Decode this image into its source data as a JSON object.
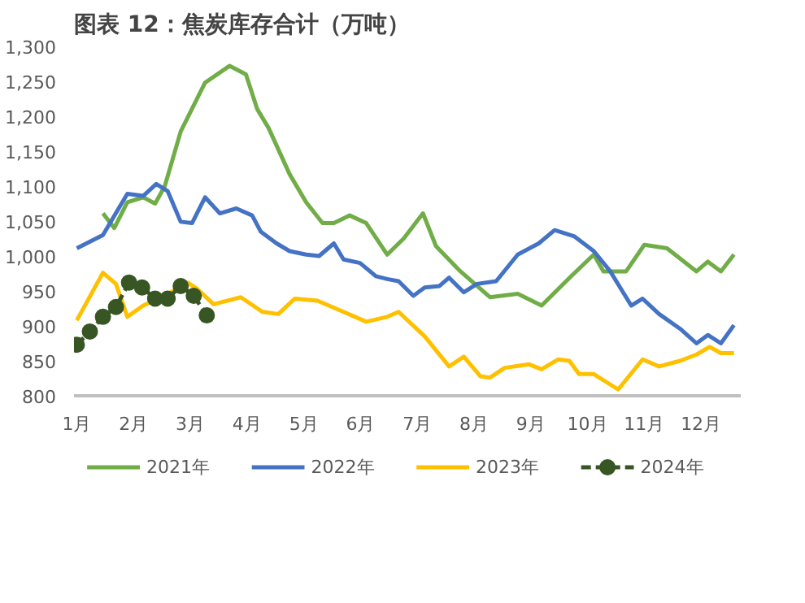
{
  "chart_data": {
    "type": "line",
    "title": "图表 12：焦炭库存合计（万吨）",
    "xlim": [
      0.95,
      12.7
    ],
    "xticks": [
      {
        "value": 1,
        "label": "1月"
      },
      {
        "value": 2,
        "label": "2月"
      },
      {
        "value": 3,
        "label": "3月"
      },
      {
        "value": 4,
        "label": "4月"
      },
      {
        "value": 5,
        "label": "5月"
      },
      {
        "value": 6,
        "label": "6月"
      },
      {
        "value": 7,
        "label": "7月"
      },
      {
        "value": 8,
        "label": "8月"
      },
      {
        "value": 9,
        "label": "9月"
      },
      {
        "value": 10,
        "label": "10月"
      },
      {
        "value": 11,
        "label": "11月"
      },
      {
        "value": 12,
        "label": "12月"
      }
    ],
    "ylim": [
      800,
      1300
    ],
    "yticks": [
      800,
      850,
      900,
      950,
      {
        "value": 1000,
        "label": "1,000"
      },
      {
        "value": 1050,
        "label": "1,050"
      },
      {
        "value": 1100,
        "label": "1,100"
      },
      {
        "value": 1150,
        "label": "1,150"
      },
      {
        "value": 1200,
        "label": "1,200"
      },
      {
        "value": 1250,
        "label": "1,250"
      },
      {
        "value": 1300,
        "label": "1,300"
      }
    ],
    "grid": false,
    "legend": "bottom",
    "series": [
      {
        "name": "2021年",
        "color": "#70ad47",
        "line_style": "solid",
        "marker": "none",
        "x": [
          1.46,
          1.66,
          1.89,
          2.17,
          2.38,
          2.55,
          2.83,
          3.26,
          3.69,
          3.98,
          4.18,
          4.38,
          4.75,
          5.04,
          5.33,
          5.53,
          5.81,
          6.1,
          6.47,
          6.76,
          7.1,
          7.33,
          7.76,
          8.28,
          8.77,
          9.19,
          9.71,
          10.11,
          10.28,
          10.68,
          11.0,
          11.4,
          11.92,
          12.12,
          12.35,
          12.58
        ],
        "values": [
          1061,
          1040,
          1077,
          1084,
          1075,
          1100,
          1178,
          1248,
          1272,
          1260,
          1210,
          1183,
          1117,
          1077,
          1047,
          1047,
          1058,
          1047,
          1002,
          1025,
          1061,
          1014,
          978,
          941,
          946,
          929,
          971,
          1002,
          978,
          978,
          1016,
          1011,
          978,
          992,
          978,
          1002
        ]
      },
      {
        "name": "2022年",
        "color": "#4472c4",
        "line_style": "solid",
        "marker": "none",
        "x": [
          1.0,
          1.46,
          1.89,
          2.17,
          2.4,
          2.6,
          2.83,
          3.03,
          3.26,
          3.52,
          3.81,
          4.09,
          4.24,
          4.52,
          4.75,
          5.04,
          5.27,
          5.53,
          5.7,
          5.99,
          6.27,
          6.47,
          6.67,
          6.93,
          7.13,
          7.39,
          7.56,
          7.82,
          8.05,
          8.39,
          8.77,
          9.14,
          9.42,
          9.77,
          10.11,
          10.4,
          10.77,
          10.97,
          11.26,
          11.63,
          11.92,
          12.12,
          12.35,
          12.58
        ],
        "values": [
          1011,
          1030,
          1089,
          1086,
          1103,
          1093,
          1049,
          1047,
          1084,
          1061,
          1068,
          1058,
          1035,
          1018,
          1007,
          1002,
          1000,
          1018,
          995,
          990,
          971,
          967,
          964,
          943,
          955,
          957,
          969,
          948,
          960,
          964,
          1002,
          1018,
          1037,
          1028,
          1007,
          978,
          929,
          939,
          917,
          896,
          875,
          887,
          875,
          901
        ]
      },
      {
        "name": "2023年",
        "color": "#ffc000",
        "line_style": "solid",
        "marker": "none",
        "x": [
          1.0,
          1.46,
          1.69,
          1.89,
          2.17,
          2.55,
          2.95,
          3.12,
          3.41,
          3.89,
          4.27,
          4.55,
          4.84,
          5.24,
          5.7,
          6.1,
          6.47,
          6.67,
          7.13,
          7.56,
          7.82,
          8.11,
          8.28,
          8.54,
          8.97,
          9.19,
          9.48,
          9.68,
          9.85,
          10.11,
          10.54,
          10.97,
          11.26,
          11.63,
          11.92,
          12.15,
          12.35,
          12.58
        ],
        "values": [
          908,
          976,
          960,
          913,
          929,
          943,
          962,
          953,
          931,
          941,
          920,
          917,
          939,
          936,
          920,
          906,
          913,
          920,
          885,
          842,
          856,
          828,
          826,
          840,
          845,
          838,
          852,
          850,
          831,
          831,
          809,
          852,
          842,
          850,
          859,
          870,
          861,
          861
        ]
      },
      {
        "name": "2024年",
        "color": "#375623",
        "line_style": "dashed",
        "marker": "circle",
        "x": [
          1.0,
          1.23,
          1.46,
          1.69,
          1.92,
          2.15,
          2.38,
          2.6,
          2.83,
          3.06,
          3.29
        ],
        "values": [
          873,
          892,
          913,
          927,
          962,
          955,
          939,
          939,
          957,
          943,
          915
        ]
      }
    ]
  }
}
